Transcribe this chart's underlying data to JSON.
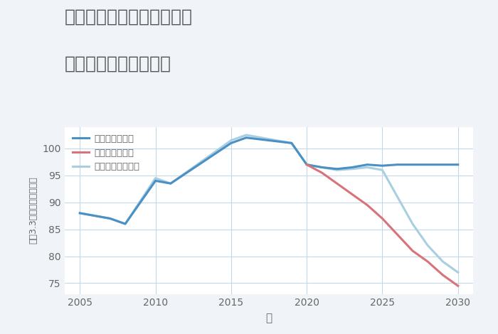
{
  "title_line1": "愛知県豊橋市牟呂大西町の",
  "title_line2": "中古戸建ての価格推移",
  "xlabel": "年",
  "ylabel": "坪（3.3㎡）単価（万円）",
  "background_color": "#f0f4f8",
  "plot_bg_color": "#ffffff",
  "good_scenario": {
    "label": "グッドシナリオ",
    "color": "#4a90c4",
    "x": [
      2005,
      2007,
      2008,
      2010,
      2011,
      2015,
      2016,
      2019,
      2020,
      2021,
      2022,
      2023,
      2024,
      2025,
      2026,
      2027,
      2028,
      2029,
      2030
    ],
    "y": [
      88,
      87,
      86,
      94,
      93.5,
      101,
      102,
      101,
      97,
      96.5,
      96.2,
      96.5,
      97,
      96.8,
      97,
      97,
      97,
      97,
      97
    ]
  },
  "bad_scenario": {
    "label": "バッドシナリオ",
    "color": "#d9737a",
    "x": [
      2020,
      2021,
      2022,
      2023,
      2024,
      2025,
      2026,
      2027,
      2028,
      2029,
      2030
    ],
    "y": [
      97,
      95.5,
      93.5,
      91.5,
      89.5,
      87,
      84,
      81,
      79,
      76.5,
      74.5
    ]
  },
  "normal_scenario": {
    "label": "ノーマルシナリオ",
    "color": "#a8cfe0",
    "x": [
      2005,
      2007,
      2008,
      2010,
      2011,
      2015,
      2016,
      2019,
      2020,
      2021,
      2022,
      2023,
      2024,
      2025,
      2026,
      2027,
      2028,
      2029,
      2030
    ],
    "y": [
      88,
      87,
      86,
      94.5,
      93.5,
      101.5,
      102.5,
      101,
      97,
      96.5,
      96,
      96.2,
      96.5,
      96,
      91,
      86,
      82,
      79,
      77
    ]
  },
  "ylim": [
    73,
    104
  ],
  "yticks": [
    75,
    80,
    85,
    90,
    95,
    100
  ],
  "xlim": [
    2004,
    2031
  ],
  "xticks": [
    2005,
    2010,
    2015,
    2020,
    2025,
    2030
  ],
  "grid_color": "#c5d8e8",
  "title_color": "#555555",
  "tick_color": "#666666",
  "label_color": "#666666",
  "title_fontsize": 18,
  "tick_fontsize": 10,
  "ylabel_fontsize": 9,
  "xlabel_fontsize": 11
}
